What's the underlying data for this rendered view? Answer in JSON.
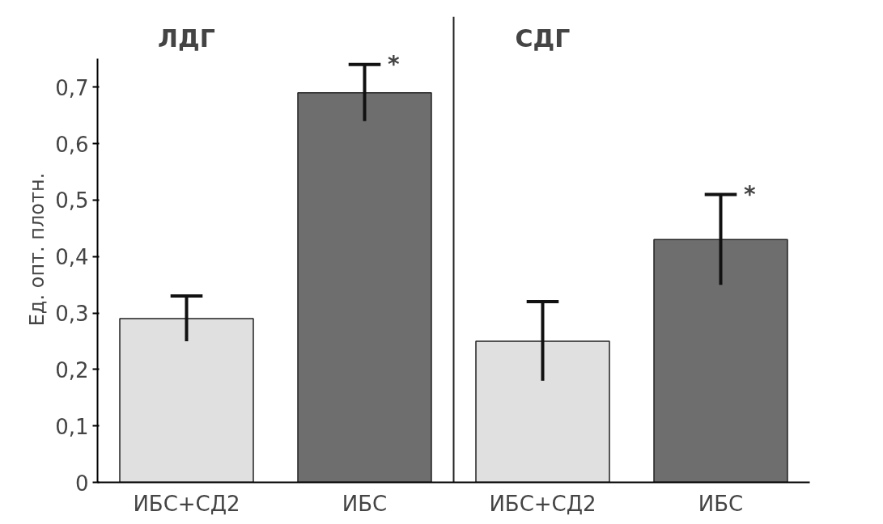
{
  "chart_data": {
    "type": "bar",
    "ylabel": "Ед. опт. плотн.",
    "categories": [
      "ИБС+СД2",
      "ИБС",
      "ИБС+СД2",
      "ИБС"
    ],
    "values": [
      0.29,
      0.69,
      0.25,
      0.43
    ],
    "errors": [
      0.04,
      0.05,
      0.07,
      0.08
    ],
    "colors": [
      "#e0e0e0",
      "#6e6e6e",
      "#e0e0e0",
      "#6e6e6e"
    ],
    "value_labels": [
      null,
      "*",
      null,
      "*"
    ],
    "annotations": [
      "ЛДГ",
      "СДГ"
    ],
    "ylim": [
      0,
      0.75
    ],
    "yticks": [
      0,
      {
        "value": 0.1,
        "label": "0,1"
      },
      {
        "value": 0.2,
        "label": "0,2"
      },
      {
        "value": 0.3,
        "label": "0,3"
      },
      {
        "value": 0.4,
        "label": "0,4"
      },
      {
        "value": 0.5,
        "label": "0,5"
      },
      {
        "value": 0.6,
        "label": "0,6"
      },
      {
        "value": 0.7,
        "label": "0,7"
      }
    ],
    "grid": false
  }
}
